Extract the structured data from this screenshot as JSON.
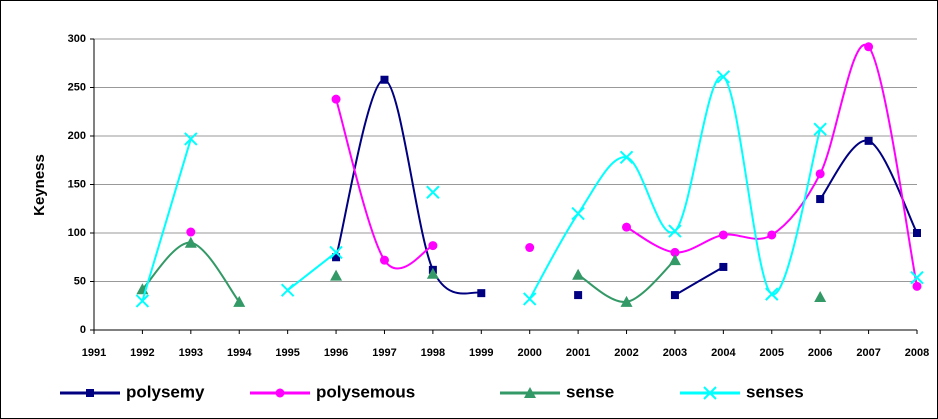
{
  "chart_data": {
    "type": "line",
    "y_label": "Keyness",
    "categories": [
      "1991",
      "1992",
      "1993",
      "1994",
      "1995",
      "1996",
      "1997",
      "1998",
      "1999",
      "2000",
      "2001",
      "2002",
      "2003",
      "2004",
      "2005",
      "2006",
      "2007",
      "2008"
    ],
    "series": [
      {
        "name": "polysemy",
        "color": "#000080",
        "marker": "square",
        "values": [
          null,
          null,
          null,
          null,
          null,
          75,
          258,
          62,
          38,
          null,
          36,
          null,
          36,
          65,
          null,
          135,
          195,
          100
        ]
      },
      {
        "name": "polysemous",
        "color": "#ff00ff",
        "marker": "circle",
        "values": [
          null,
          null,
          101,
          null,
          null,
          238,
          72,
          87,
          null,
          85,
          null,
          106,
          80,
          98,
          98,
          161,
          292,
          45
        ]
      },
      {
        "name": "sense",
        "color": "#339966",
        "marker": "triangle",
        "values": [
          null,
          42,
          90,
          29,
          null,
          56,
          null,
          58,
          null,
          null,
          57,
          29,
          72,
          null,
          null,
          34,
          null,
          null
        ]
      },
      {
        "name": "senses",
        "color": "#00ffff",
        "marker": "x",
        "values": [
          null,
          30,
          197,
          null,
          41,
          80,
          null,
          142,
          null,
          32,
          120,
          178,
          102,
          261,
          37,
          207,
          null,
          54
        ]
      }
    ],
    "ylim": [
      0,
      300
    ],
    "yticks": [
      0,
      50,
      100,
      150,
      200,
      250,
      300
    ],
    "grid": true,
    "smooth": true,
    "legend": "bottom"
  }
}
